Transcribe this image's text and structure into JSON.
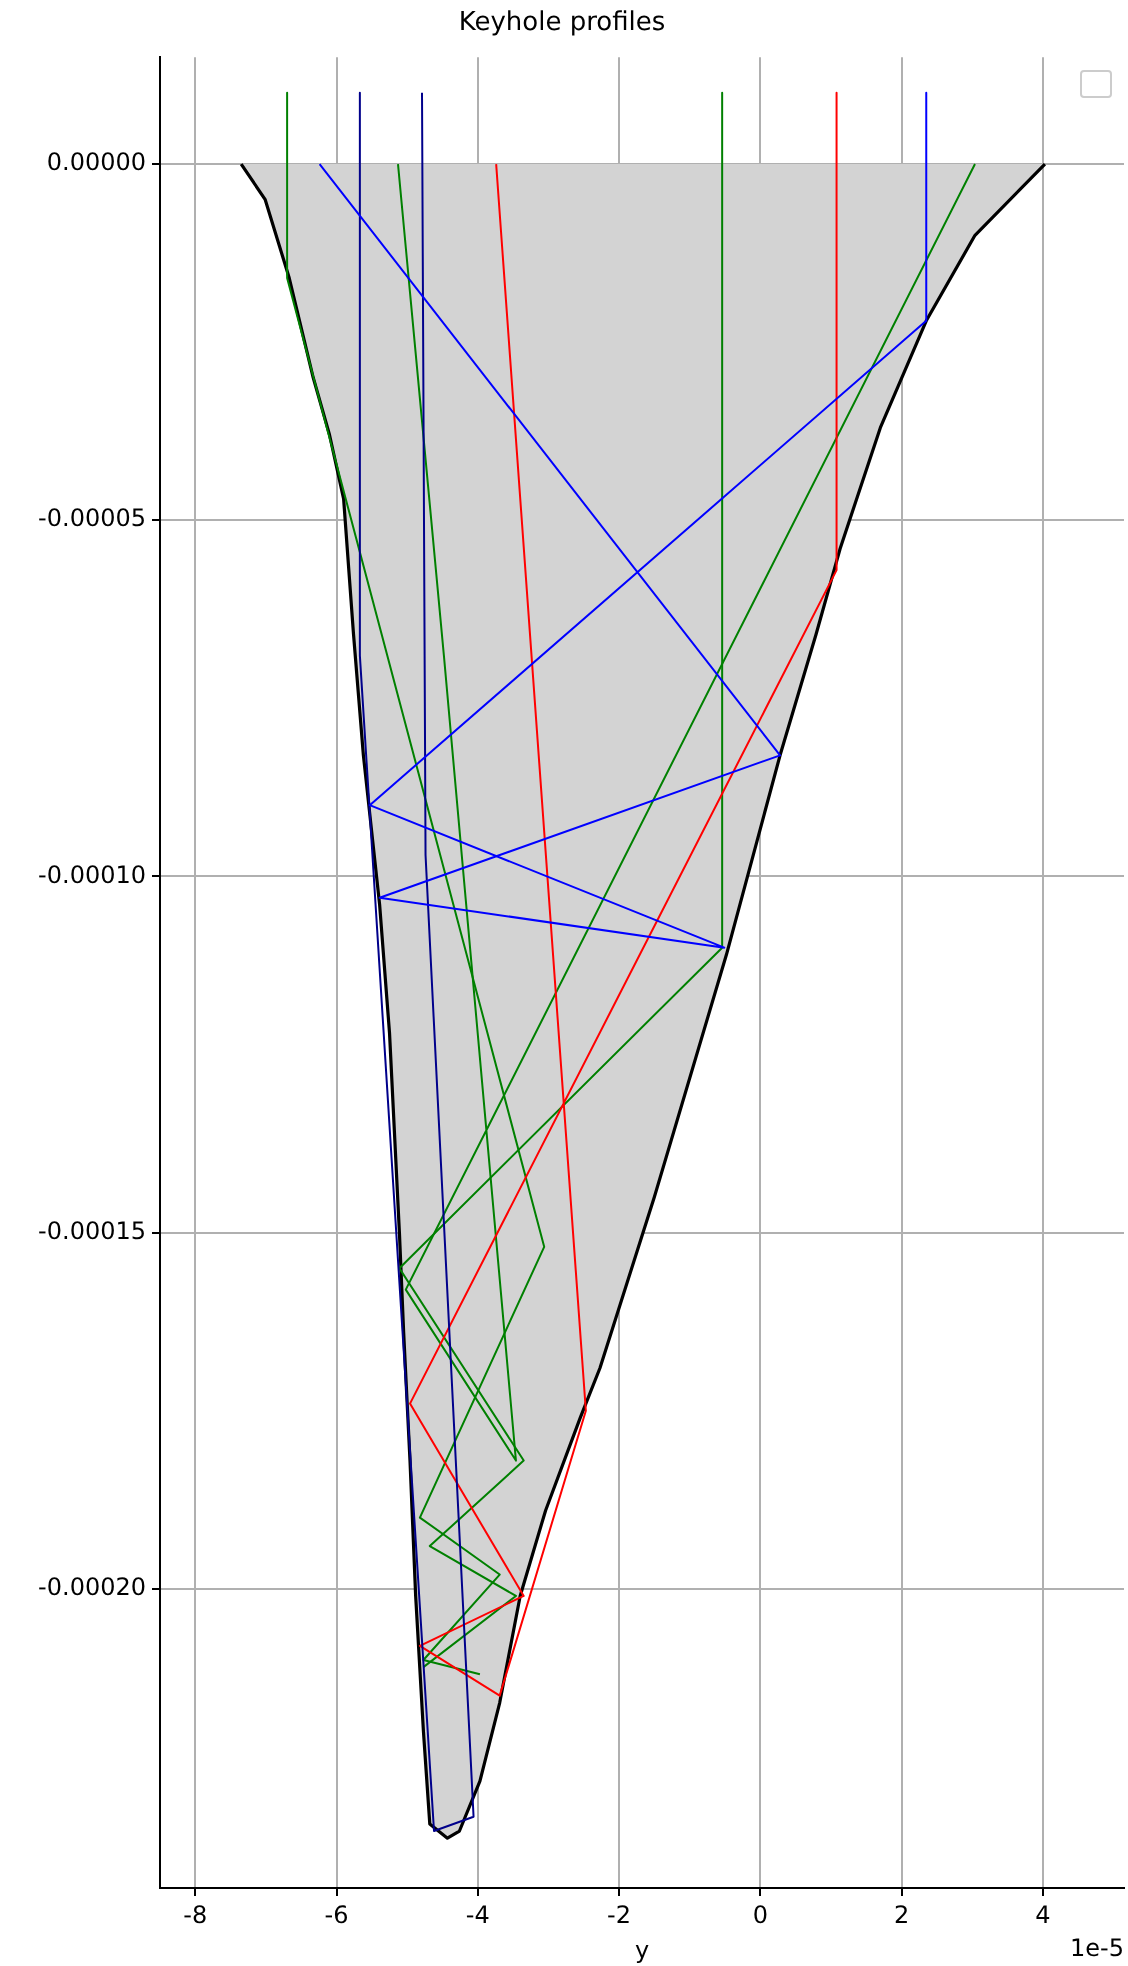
{
  "chart_data": {
    "type": "line",
    "title": "Keyhole profiles",
    "xlabel": "y",
    "xlim": [
      -8.5,
      5.15
    ],
    "xticks": [
      -8,
      -6,
      -4,
      -2,
      0,
      2,
      4
    ],
    "ylim": [
      -0.000242,
      1.5e-05
    ],
    "yticks": [
      {
        "value": 0,
        "label": "0.00000"
      },
      {
        "value": -5e-05,
        "label": "-0.00005"
      },
      {
        "value": -0.0001,
        "label": "-0.00010"
      },
      {
        "value": -0.00015,
        "label": "-0.00015"
      },
      {
        "value": -0.0002,
        "label": "-0.00020"
      }
    ],
    "grid": true,
    "marker": "none",
    "line_style": "solid",
    "annotations": [
      "1e-5"
    ],
    "series": [
      {
        "type": "area",
        "color": "#000000",
        "x": [
          -7.35,
          -7.01,
          -6.67,
          -6.33,
          -6.1,
          -5.9,
          -5.76,
          -5.62,
          -5.39,
          -5.25,
          -5.11,
          -5.05,
          -4.96,
          -4.88,
          -4.77,
          -4.68,
          -4.43,
          -4.26,
          -3.97,
          -3.69,
          -3.4,
          -3.04,
          -2.55,
          -2.27,
          -1.5,
          -0.48,
          0.28,
          0.79,
          1.13,
          1.7,
          2.35,
          3.04,
          4.03
        ],
        "values": [
          0,
          -5e-06,
          -1.6e-05,
          -3e-05,
          -3.8e-05,
          -4.7e-05,
          -6.6e-05,
          -8.3e-05,
          -0.000104,
          -0.000122,
          -0.00015,
          -0.000164,
          -0.000182,
          -0.000201,
          -0.00022,
          -0.000233,
          -0.000235,
          -0.000234,
          -0.000227,
          -0.000216,
          -0.000201,
          -0.000189,
          -0.000176,
          -0.000169,
          -0.000145,
          -0.000111,
          -8.3e-05,
          -6.6e-05,
          -5.4e-05,
          -3.7e-05,
          -2.2e-05,
          -1e-05,
          0
        ]
      },
      {
        "type": "line",
        "color": "#0000ff",
        "x": [
          2.35,
          2.35,
          -5.53,
          -0.51,
          -5.39,
          0.28,
          -6.24
        ],
        "values": [
          1e-05,
          -2.2e-05,
          -9e-05,
          -0.00011,
          -0.000103,
          -8.3e-05,
          0
        ]
      },
      {
        "type": "line",
        "color": "#00008b",
        "x": [
          -5.67,
          -5.67,
          -4.62,
          -4.06,
          -4.74,
          -4.79
        ],
        "values": [
          1e-05,
          -6.9e-05,
          -0.000234,
          -0.000232,
          -9.7e-05,
          1e-05
        ]
      },
      {
        "type": "line",
        "color": "#ff0000",
        "x": [
          1.08,
          1.08,
          -4.96,
          -3.35,
          -4.82,
          -3.69,
          -2.47,
          -3.74
        ],
        "values": [
          1e-05,
          -5.7e-05,
          -0.000174,
          -0.000201,
          -0.000208,
          -0.000215,
          -0.000175,
          0
        ]
      },
      {
        "type": "line",
        "color": "#008000",
        "x": [
          -6.7,
          -6.7,
          -3.06,
          -4.82,
          -3.69,
          -4.77,
          -3.97
        ],
        "values": [
          1e-05,
          -1.6e-05,
          -0.000152,
          -0.00019,
          -0.000198,
          -0.00021,
          -0.000212
        ]
      },
      {
        "type": "line",
        "color": "#008000",
        "x": [
          -0.54,
          -0.54,
          -5.11,
          -3.35,
          -4.68,
          -3.46,
          -4.77
        ],
        "values": [
          1e-05,
          -0.00011,
          -0.000155,
          -0.000182,
          -0.000194,
          -0.000201,
          -0.000211
        ]
      },
      {
        "type": "line",
        "color": "#008000",
        "x": [
          3.04,
          -5.02,
          -3.46,
          -4.48,
          -5.13
        ],
        "values": [
          0,
          -0.000158,
          -0.000182,
          -6.9e-05,
          0
        ]
      }
    ]
  }
}
